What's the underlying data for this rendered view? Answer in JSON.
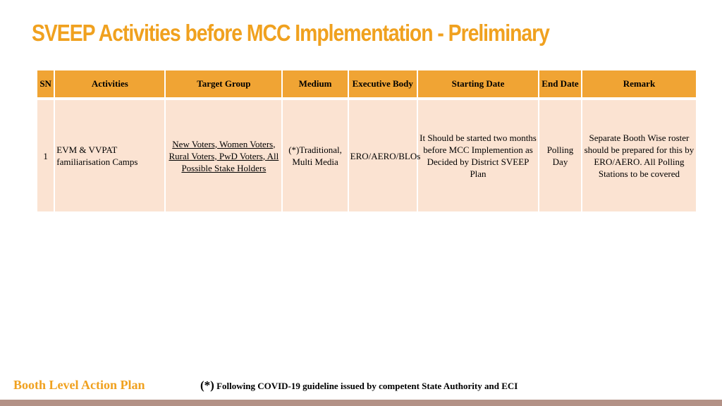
{
  "title": "SVEEP Activities before MCC Implementation - Preliminary",
  "table": {
    "headers": [
      "SN",
      "Activities",
      "Target Group",
      "Medium",
      "Executive Body",
      "Starting Date",
      "End Date",
      "Remark"
    ],
    "rows": [
      {
        "sn": "1",
        "activities": "EVM & VVPAT familiarisation Camps",
        "target_group": "New Voters, Women Voters, Rural Voters, PwD Voters,  All Possible Stake Holders",
        "medium": "(*)Traditional, Multi Media",
        "executive_body": "ERO/AERO/BLOs",
        "starting_date": "It Should be started two months before MCC Implemention as Decided by District SVEEP Plan",
        "end_date": "Polling Day",
        "remark": "Separate Booth Wise roster should be prepared for this by ERO/AERO. All Polling Stations to be covered"
      }
    ]
  },
  "footer": {
    "left_label": "Booth Level Action Plan",
    "note_star": "(*)",
    "note_text": " Following COVID-19 guideline issued by competent State Authority and ECI"
  }
}
